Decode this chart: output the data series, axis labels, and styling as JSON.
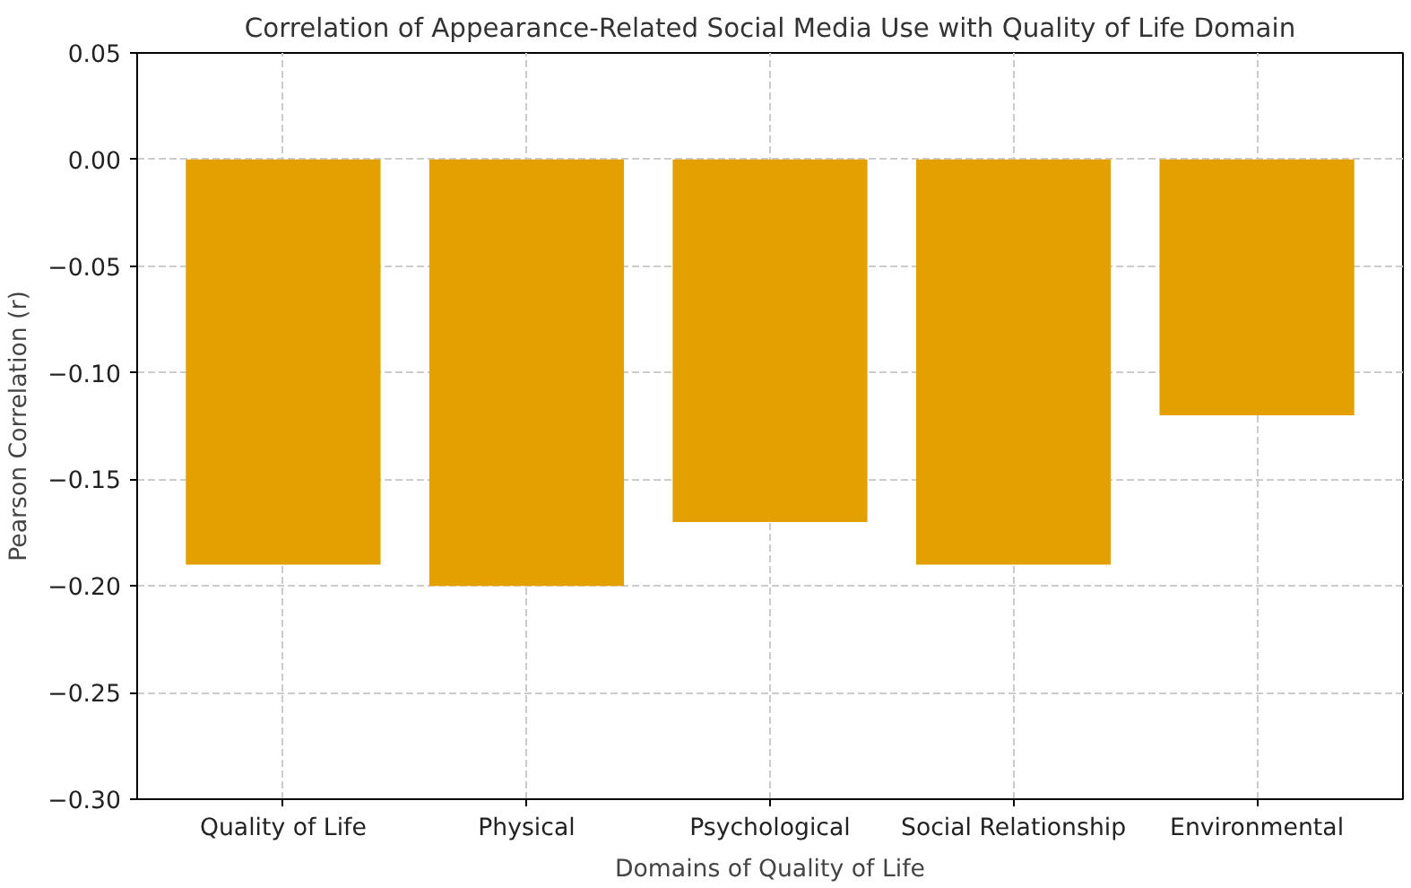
{
  "chart_data": {
    "type": "bar",
    "title": "Correlation of Appearance-Related Social Media Use with Quality of Life Domain",
    "xlabel": "Domains of Quality of Life",
    "ylabel": "Pearson Correlation (r)",
    "categories": [
      "Quality of Life",
      "Physical",
      "Psychological",
      "Social Relationship",
      "Environmental"
    ],
    "values": [
      -0.19,
      -0.2,
      -0.17,
      -0.19,
      -0.12
    ],
    "color": "#e3a000",
    "ylim": [
      -0.3,
      0.05
    ],
    "yticks": [
      {
        "value": -0.3,
        "label": "−0.30"
      },
      {
        "value": -0.25,
        "label": "−0.25"
      },
      {
        "value": -0.2,
        "label": "−0.20"
      },
      {
        "value": -0.15,
        "label": "−0.15"
      },
      {
        "value": -0.1,
        "label": "−0.10"
      },
      {
        "value": -0.05,
        "label": "−0.05"
      },
      {
        "value": 0.0,
        "label": "0.00"
      },
      {
        "value": 0.05,
        "label": "0.05"
      }
    ],
    "grid": true
  }
}
